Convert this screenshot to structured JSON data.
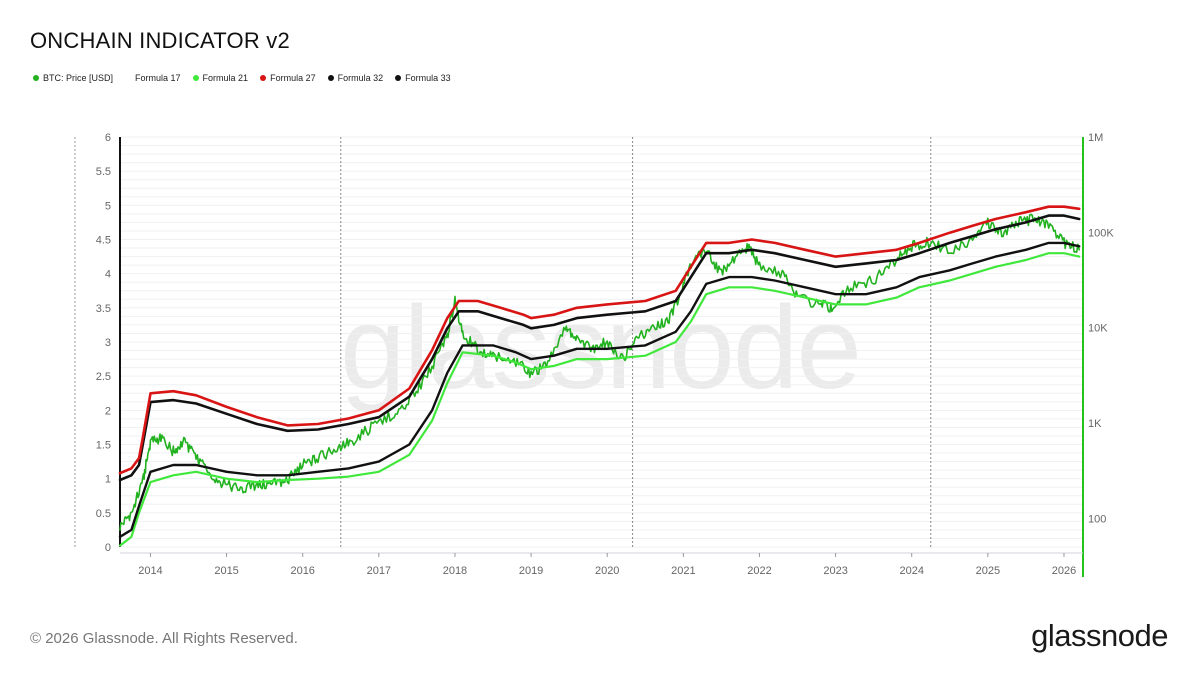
{
  "title": "ONCHAIN INDICATOR v2",
  "footer": {
    "copyright": "© 2026 Glassnode. All Rights Reserved.",
    "brand": "glassnode"
  },
  "watermark": "glassnode",
  "colors": {
    "price": "#22b21f",
    "f17": "#ffffff",
    "f21": "#3fe83b",
    "f27": "#d81414",
    "f32": "#111111",
    "f33": "#111111",
    "right_axis": "#22c41c"
  },
  "legend": [
    {
      "label": "BTC: Price [USD]",
      "color": "#22b21f"
    },
    {
      "label": "Formula 17",
      "color": "#ffffff"
    },
    {
      "label": "Formula 21",
      "color": "#3fe83b"
    },
    {
      "label": "Formula 27",
      "color": "#d81414"
    },
    {
      "label": "Formula 32",
      "color": "#111111"
    },
    {
      "label": "Formula 33",
      "color": "#111111"
    }
  ],
  "chart_data": {
    "type": "line",
    "x_start": "2013-08",
    "x_end": "2026-03",
    "x_ticks": [
      "2014",
      "2015",
      "2016",
      "2017",
      "2018",
      "2019",
      "2020",
      "2021",
      "2022",
      "2023",
      "2024",
      "2025",
      "2026"
    ],
    "y_left": {
      "ticks": [
        "0",
        "0.5",
        "1",
        "1.5",
        "2",
        "2.5",
        "3",
        "3.5",
        "4",
        "4.5",
        "5",
        "5.5",
        "6"
      ],
      "ylim": [
        0,
        6
      ]
    },
    "y_right": {
      "scale": "log",
      "ticks": [
        "100",
        "1K",
        "10K",
        "100K",
        "1M"
      ],
      "tick_values": [
        100,
        1000,
        10000,
        100000,
        1000000
      ]
    },
    "halving_lines": [
      "2016-07",
      "2020-05",
      "2024-04"
    ],
    "grid": true,
    "series": [
      {
        "name": "BTC: Price [USD]",
        "key": "price",
        "axis": "left",
        "x": [
          2013.6,
          2013.75,
          2013.9,
          2014.0,
          2014.15,
          2014.3,
          2014.45,
          2014.6,
          2014.8,
          2015.0,
          2015.2,
          2015.4,
          2015.6,
          2015.8,
          2016.0,
          2016.2,
          2016.45,
          2016.65,
          2016.9,
          2017.2,
          2017.45,
          2017.7,
          2017.9,
          2018.0,
          2018.1,
          2018.3,
          2018.5,
          2018.8,
          2019.0,
          2019.2,
          2019.45,
          2019.6,
          2019.8,
          2020.0,
          2020.2,
          2020.4,
          2020.6,
          2020.8,
          2020.95,
          2021.1,
          2021.3,
          2021.5,
          2021.7,
          2021.85,
          2022.0,
          2022.3,
          2022.5,
          2022.8,
          2022.95,
          2023.2,
          2023.5,
          2023.8,
          2024.0,
          2024.2,
          2024.5,
          2024.8,
          2025.0,
          2025.2,
          2025.4,
          2025.6,
          2025.8,
          2026.0,
          2026.2
        ],
        "y": [
          0.3,
          0.5,
          0.95,
          1.55,
          1.6,
          1.4,
          1.55,
          1.3,
          1.05,
          0.9,
          0.85,
          0.9,
          0.92,
          0.98,
          1.2,
          1.3,
          1.45,
          1.55,
          1.75,
          1.95,
          2.2,
          2.65,
          3.1,
          3.6,
          3.1,
          2.9,
          2.8,
          2.7,
          2.55,
          2.65,
          3.25,
          3.05,
          2.9,
          3.0,
          2.75,
          3.05,
          3.25,
          3.3,
          3.65,
          4.15,
          4.35,
          4.0,
          4.25,
          4.4,
          4.1,
          4.0,
          3.65,
          3.55,
          3.5,
          3.8,
          3.9,
          4.2,
          4.4,
          4.45,
          4.35,
          4.5,
          4.75,
          4.6,
          4.75,
          4.8,
          4.7,
          4.45,
          4.35
        ]
      },
      {
        "name": "Formula 21",
        "key": "f21",
        "axis": "left",
        "x": [
          2013.6,
          2013.75,
          2013.85,
          2014.0,
          2014.3,
          2014.6,
          2015.0,
          2015.4,
          2015.8,
          2016.2,
          2016.6,
          2017.0,
          2017.4,
          2017.7,
          2017.9,
          2018.1,
          2018.5,
          2018.8,
          2019.0,
          2019.3,
          2019.6,
          2020.0,
          2020.5,
          2020.9,
          2021.1,
          2021.3,
          2021.6,
          2021.9,
          2022.2,
          2022.6,
          2023.0,
          2023.4,
          2023.8,
          2024.1,
          2024.5,
          2024.8,
          2025.1,
          2025.5,
          2025.8,
          2026.0,
          2026.2
        ],
        "y": [
          0.02,
          0.15,
          0.5,
          0.95,
          1.05,
          1.1,
          1.0,
          0.95,
          0.98,
          1.0,
          1.03,
          1.1,
          1.35,
          1.85,
          2.4,
          2.85,
          2.8,
          2.7,
          2.6,
          2.65,
          2.75,
          2.75,
          2.8,
          3.0,
          3.3,
          3.7,
          3.8,
          3.8,
          3.75,
          3.65,
          3.55,
          3.55,
          3.65,
          3.8,
          3.9,
          4.0,
          4.1,
          4.2,
          4.3,
          4.3,
          4.25
        ]
      },
      {
        "name": "Formula 32",
        "key": "f32",
        "axis": "left",
        "x": [
          2013.6,
          2013.75,
          2013.85,
          2014.0,
          2014.3,
          2014.6,
          2015.0,
          2015.4,
          2015.8,
          2016.2,
          2016.6,
          2017.0,
          2017.4,
          2017.7,
          2017.9,
          2018.1,
          2018.5,
          2018.8,
          2019.0,
          2019.3,
          2019.6,
          2020.0,
          2020.5,
          2020.9,
          2021.1,
          2021.3,
          2021.6,
          2021.9,
          2022.2,
          2022.6,
          2023.0,
          2023.4,
          2023.8,
          2024.1,
          2024.5,
          2024.8,
          2025.1,
          2025.5,
          2025.8,
          2026.0,
          2026.2
        ],
        "y": [
          0.15,
          0.25,
          0.6,
          1.1,
          1.2,
          1.2,
          1.1,
          1.05,
          1.05,
          1.1,
          1.15,
          1.25,
          1.5,
          2.0,
          2.55,
          2.95,
          2.95,
          2.85,
          2.75,
          2.8,
          2.9,
          2.9,
          2.95,
          3.15,
          3.45,
          3.85,
          3.95,
          3.95,
          3.9,
          3.8,
          3.7,
          3.7,
          3.8,
          3.95,
          4.05,
          4.15,
          4.25,
          4.35,
          4.45,
          4.45,
          4.4
        ]
      },
      {
        "name": "Formula 33",
        "key": "f33",
        "axis": "left",
        "x": [
          2013.6,
          2013.75,
          2013.85,
          2013.9,
          2014.0,
          2014.3,
          2014.6,
          2015.0,
          2015.4,
          2015.8,
          2016.2,
          2016.6,
          2017.0,
          2017.4,
          2017.7,
          2017.9,
          2018.05,
          2018.3,
          2018.6,
          2018.9,
          2019.0,
          2019.3,
          2019.6,
          2020.0,
          2020.5,
          2020.9,
          2021.1,
          2021.3,
          2021.6,
          2021.9,
          2022.2,
          2022.6,
          2023.0,
          2023.4,
          2023.8,
          2024.1,
          2024.5,
          2024.8,
          2025.1,
          2025.5,
          2025.8,
          2026.0,
          2026.2
        ],
        "y": [
          0.98,
          1.05,
          1.2,
          1.5,
          2.12,
          2.15,
          2.1,
          1.95,
          1.8,
          1.7,
          1.72,
          1.8,
          1.9,
          2.2,
          2.75,
          3.2,
          3.45,
          3.45,
          3.35,
          3.25,
          3.2,
          3.25,
          3.35,
          3.4,
          3.45,
          3.6,
          3.95,
          4.3,
          4.3,
          4.35,
          4.3,
          4.2,
          4.1,
          4.15,
          4.2,
          4.3,
          4.45,
          4.55,
          4.65,
          4.75,
          4.85,
          4.85,
          4.8
        ]
      },
      {
        "name": "Formula 27",
        "key": "f27",
        "axis": "left",
        "x": [
          2013.6,
          2013.75,
          2013.85,
          2013.9,
          2014.0,
          2014.3,
          2014.6,
          2015.0,
          2015.4,
          2015.8,
          2016.2,
          2016.6,
          2017.0,
          2017.4,
          2017.7,
          2017.9,
          2018.05,
          2018.3,
          2018.6,
          2018.9,
          2019.0,
          2019.3,
          2019.6,
          2020.0,
          2020.5,
          2020.9,
          2021.1,
          2021.3,
          2021.6,
          2021.9,
          2022.2,
          2022.6,
          2023.0,
          2023.4,
          2023.8,
          2024.1,
          2024.5,
          2024.8,
          2025.1,
          2025.5,
          2025.8,
          2026.0,
          2026.2
        ],
        "y": [
          1.08,
          1.15,
          1.3,
          1.6,
          2.25,
          2.28,
          2.22,
          2.05,
          1.9,
          1.78,
          1.8,
          1.88,
          2.0,
          2.32,
          2.88,
          3.35,
          3.6,
          3.6,
          3.5,
          3.4,
          3.35,
          3.4,
          3.5,
          3.55,
          3.6,
          3.75,
          4.1,
          4.45,
          4.45,
          4.5,
          4.45,
          4.35,
          4.25,
          4.3,
          4.35,
          4.45,
          4.6,
          4.7,
          4.8,
          4.9,
          4.98,
          4.98,
          4.95
        ]
      }
    ]
  }
}
